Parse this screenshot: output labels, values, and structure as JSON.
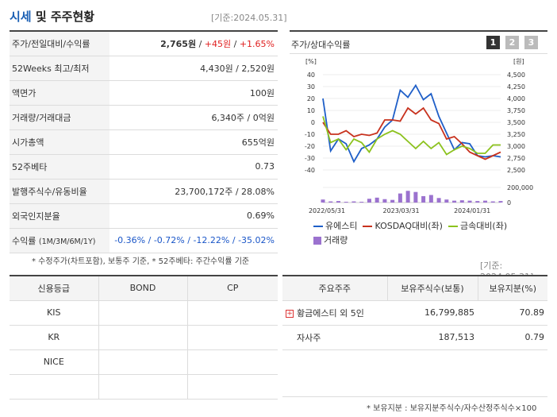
{
  "header": {
    "title_accent": "시세",
    "title_rest": "및 주주현황",
    "as_of": "[기준:2024.05.31]"
  },
  "stock_info": {
    "price_label": "주가/전일대비/수익률",
    "price": "2,765원",
    "sep1": " / ",
    "change": "+45원",
    "sep2": " / ",
    "change_pct": "+1.65%",
    "rows": [
      {
        "label": "52Weeks 최고/최저",
        "value": "4,430원 / 2,520원"
      },
      {
        "label": "액면가",
        "value": "100원"
      },
      {
        "label": "거래량/거래대금",
        "value": "6,340주 / 0억원"
      },
      {
        "label": "시가총액",
        "value": "655억원"
      },
      {
        "label": "52주베타",
        "value": "0.73"
      },
      {
        "label": "발행주식수/유동비율",
        "value": "23,700,172주 / 28.08%"
      },
      {
        "label": "외국인지분율",
        "value": "0.69%"
      }
    ],
    "return_label": "수익률",
    "return_periods": "(1M/3M/6M/1Y)",
    "returns": [
      "-0.36%",
      "-0.72%",
      "-12.22%",
      "-35.02%"
    ],
    "return_sep": "/ ",
    "footnote": "* 수정주가(차트포함), 보통주 기준, * 52주베타: 주간수익률 기준"
  },
  "chart_panel": {
    "title": "주가/상대수익률",
    "pages": [
      "1",
      "2",
      "3"
    ],
    "left_unit": "[%]",
    "right_unit": "[원]",
    "legend": {
      "s1": "유에스티",
      "s2": "KOSDAQ대비(좌)",
      "s3": "금속대비(좌)",
      "s4": "거래량"
    },
    "colors": {
      "s1": "#1f5fc8",
      "s2": "#c8321e",
      "s3": "#8cc21e",
      "bars": "#9b72cf"
    }
  },
  "chart_data": {
    "type": "line",
    "x_ticks": [
      "2022/05/31",
      "2023/03/31",
      "2024/01/31"
    ],
    "y_left": {
      "ticks": [
        "40",
        "30",
        "20",
        "10",
        "0",
        "-10",
        "-20",
        "-30",
        "-40"
      ],
      "range": [
        -40,
        40
      ]
    },
    "y_right": {
      "ticks": [
        "4,500",
        "4,250",
        "4,000",
        "3,750",
        "3,500",
        "3,250",
        "3,000",
        "2,750",
        "2,500"
      ],
      "range": [
        2500,
        4500
      ]
    },
    "volume_axis": {
      "ticks": [
        "200,000",
        "0"
      ],
      "range": [
        0,
        200000
      ]
    },
    "series": [
      {
        "name": "유에스티",
        "axis": "left",
        "values": [
          20,
          -24,
          -14,
          -18,
          -33,
          -22,
          -19,
          -14,
          -4,
          2,
          27,
          21,
          31,
          19,
          24,
          5,
          -9,
          -23,
          -17,
          -18,
          -28,
          -29,
          -28,
          -29
        ]
      },
      {
        "name": "KOSDAQ대비(좌)",
        "axis": "left",
        "values": [
          0,
          -10,
          -10,
          -7,
          -12,
          -10,
          -11,
          -9,
          2,
          2,
          1,
          12,
          7,
          12,
          2,
          -1,
          -14,
          -12,
          -18,
          -25,
          -28,
          -31,
          -28,
          -25
        ]
      },
      {
        "name": "금속대비(좌)",
        "axis": "left",
        "values": [
          5,
          -17,
          -14,
          -23,
          -14,
          -17,
          -25,
          -14,
          -10,
          -7,
          -10,
          -16,
          -22,
          -16,
          -22,
          -17,
          -27,
          -23,
          -20,
          -22,
          -26,
          -26,
          -19,
          -19
        ]
      }
    ],
    "volume": [
      40000,
      15000,
      20000,
      10000,
      15000,
      10000,
      50000,
      65000,
      45000,
      35000,
      120000,
      155000,
      140000,
      85000,
      100000,
      60000,
      40000,
      25000,
      30000,
      25000,
      20000,
      25000,
      15000,
      20000
    ]
  },
  "credit": {
    "headers": [
      "신용등급",
      "BOND",
      "CP"
    ],
    "rows": [
      [
        "KIS",
        "",
        ""
      ],
      [
        "KR",
        "",
        ""
      ],
      [
        "NICE",
        "",
        ""
      ],
      [
        "",
        "",
        ""
      ]
    ]
  },
  "holders": {
    "as_of": "[기준: 2024.05.31]",
    "headers": [
      "주요주주",
      "보유주식수(보통)",
      "보유지분(%)"
    ],
    "rows": [
      {
        "name": "황금에스티 외 5인",
        "shares": "16,799,885",
        "pct": "70.89"
      },
      {
        "name": "자사주",
        "shares": "187,513",
        "pct": "0.79"
      }
    ],
    "footnote": "* 보유지분 : 보유지분주식수/자수산정주식수×100"
  }
}
